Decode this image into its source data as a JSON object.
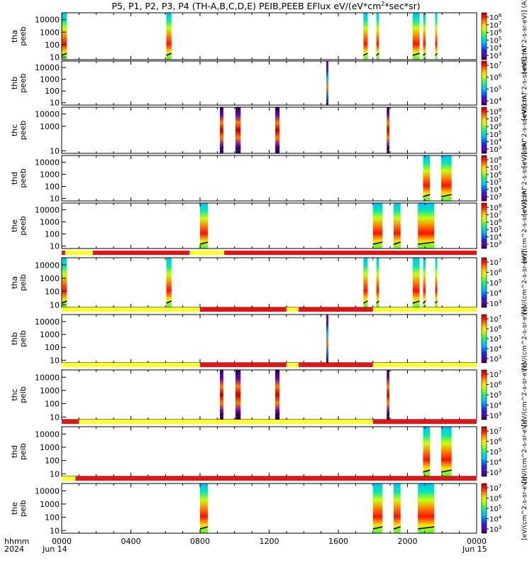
{
  "title": "P5, P1, P2, P3, P4 (TH-A,B,C,D,E) PEIB,PEEB EFlux eV/(eV*cm^2*sec*sr)",
  "title_parts": {
    "before": "P5, P1, P2, P3, P4 (TH-A,B,C,D,E) PEIB,PEEB EFlux eV/(eV*cm",
    "sup": "2",
    "after": "*sec*sr)"
  },
  "colors": {
    "spectrum": [
      "#2a0044",
      "#6a00b0",
      "#2020e0",
      "#0070ff",
      "#00c0ff",
      "#00e8b0",
      "#40ff40",
      "#c8ff00",
      "#ffe000",
      "#ff8000",
      "#ff1000",
      "#c00000"
    ],
    "bar_yellow": "#ffff22",
    "bar_red": "#ee1010",
    "line": "#000000"
  },
  "footer": {
    "hhmm_label": "hhmm",
    "year_label": "2024",
    "start_date": "Jun 14",
    "end_date": "Jun 15",
    "x_ticks": [
      "0000",
      "0400",
      "0800",
      "1200",
      "1600",
      "2000",
      "0000"
    ]
  },
  "colorbar_label_electron": "[eV/(cm^2-s-sr-eV)] (A)",
  "colorbar_label_ion": "[eV/(cm^2-s-sr-eV)]",
  "chart_data": [
    {
      "type": "heatmap",
      "probe": "tha",
      "species": "peeb",
      "ylabel": [
        "tha",
        "peeb"
      ],
      "ylog": true,
      "yticks": [
        "10",
        "100",
        "1000",
        "10000"
      ],
      "zticks": [
        "10^3",
        "10^4",
        "10^5",
        "10^6",
        "10^7",
        "10^8"
      ],
      "segments": [
        [
          0.0,
          0.3,
          "full"
        ],
        [
          6.05,
          6.35,
          "full"
        ],
        [
          17.45,
          17.7,
          "full"
        ],
        [
          18.2,
          18.35,
          "full"
        ],
        [
          20.3,
          20.7,
          "full"
        ],
        [
          20.9,
          21.05,
          "full"
        ],
        [
          21.6,
          21.7,
          "full"
        ]
      ]
    },
    {
      "type": "heatmap",
      "probe": "thb",
      "species": "peeb",
      "ylabel": [
        "thb",
        "peeb"
      ],
      "ylog": true,
      "yticks": [
        "10",
        "100",
        "1000",
        "10000"
      ],
      "zticks": [
        "10^4",
        "10^5",
        "10^6",
        "10^7"
      ],
      "segments": [
        [
          15.3,
          15.4,
          "spike"
        ]
      ]
    },
    {
      "type": "heatmap",
      "probe": "thc",
      "species": "peeb",
      "ylabel": [
        "thc",
        "peeb"
      ],
      "ylog": true,
      "yticks": [
        "10",
        "1000",
        "10000"
      ],
      "zticks": [
        "10^3",
        "10^4",
        "10^5",
        "10^6",
        "10^7",
        "10^8"
      ],
      "segments": [
        [
          9.15,
          9.35,
          "band"
        ],
        [
          10.05,
          10.35,
          "band"
        ],
        [
          12.35,
          12.6,
          "band"
        ],
        [
          18.8,
          18.95,
          "band"
        ]
      ]
    },
    {
      "type": "heatmap",
      "probe": "thd",
      "species": "peeb",
      "ylabel": [
        "thd",
        "peeb"
      ],
      "ylog": true,
      "yticks": [
        "10",
        "100",
        "1000",
        "10000"
      ],
      "zticks": [
        "10^3",
        "10^4",
        "10^5",
        "10^6",
        "10^7",
        "10^8"
      ],
      "segments": [
        [
          20.9,
          21.3,
          "full"
        ],
        [
          21.95,
          22.55,
          "full"
        ]
      ]
    },
    {
      "type": "heatmap",
      "probe": "the",
      "species": "peeb",
      "ylabel": [
        "the",
        "peeb"
      ],
      "ylog": true,
      "yticks": [
        "10",
        "100",
        "1000",
        "10000"
      ],
      "zticks": [
        "10^3",
        "10^4",
        "10^5",
        "10^6",
        "10^7",
        "10^8"
      ],
      "segments": [
        [
          8.0,
          8.45,
          "full"
        ],
        [
          18.0,
          18.55,
          "full"
        ],
        [
          19.2,
          19.6,
          "full"
        ],
        [
          20.6,
          21.55,
          "full"
        ]
      ]
    },
    {
      "type": "heatmap",
      "probe": "tha",
      "species": "peib",
      "ylabel": [
        "tha",
        "peib"
      ],
      "ylog": true,
      "yticks": [
        "10",
        "100",
        "1000",
        "10000"
      ],
      "zticks": [
        "10^3",
        "10^4",
        "10^5",
        "10^6",
        "10^7"
      ],
      "bar": [
        [
          0,
          0.2,
          "red"
        ],
        [
          0.2,
          1.8,
          "yellow"
        ],
        [
          1.8,
          7.4,
          "red"
        ],
        [
          7.4,
          9.4,
          "yellow"
        ],
        [
          9.4,
          24,
          "red"
        ]
      ],
      "segments": [
        [
          0.0,
          0.3,
          "full"
        ],
        [
          6.05,
          6.35,
          "full"
        ],
        [
          17.45,
          17.7,
          "full"
        ],
        [
          18.2,
          18.35,
          "full"
        ],
        [
          20.3,
          20.7,
          "full"
        ],
        [
          20.9,
          21.05,
          "full"
        ],
        [
          21.6,
          21.7,
          "full"
        ]
      ]
    },
    {
      "type": "heatmap",
      "probe": "thb",
      "species": "peib",
      "ylabel": [
        "thb",
        "peib"
      ],
      "ylog": true,
      "yticks": [
        "10",
        "100",
        "1000",
        "10000"
      ],
      "zticks": [
        "10^3",
        "10^4",
        "10^5",
        "10^6",
        "10^7"
      ],
      "bar": [
        [
          0,
          8.0,
          "yellow"
        ],
        [
          8.0,
          13.0,
          "red"
        ],
        [
          13.0,
          13.7,
          "yellow"
        ],
        [
          13.7,
          18.0,
          "red"
        ],
        [
          18.0,
          24,
          "yellow"
        ]
      ],
      "segments": [
        [
          15.3,
          15.4,
          "spike"
        ]
      ]
    },
    {
      "type": "heatmap",
      "probe": "thc",
      "species": "peib",
      "ylabel": [
        "thc",
        "peib"
      ],
      "ylog": true,
      "yticks": [
        "10",
        "100",
        "1000",
        "10000"
      ],
      "zticks": [
        "10^3",
        "10^4",
        "10^5",
        "10^6",
        "10^7"
      ],
      "bar": [
        [
          0,
          8.0,
          "yellow"
        ],
        [
          8.0,
          13.0,
          "red"
        ],
        [
          13.0,
          13.7,
          "yellow"
        ],
        [
          13.7,
          18.0,
          "red"
        ],
        [
          18.0,
          24,
          "yellow"
        ]
      ],
      "segments": [
        [
          9.15,
          9.35,
          "band"
        ],
        [
          10.05,
          10.35,
          "band"
        ],
        [
          12.35,
          12.6,
          "band"
        ],
        [
          18.8,
          18.95,
          "band"
        ]
      ]
    },
    {
      "type": "heatmap",
      "probe": "thd",
      "species": "peib",
      "ylabel": [
        "thd",
        "peib"
      ],
      "ylog": true,
      "yticks": [
        "10",
        "100",
        "1000",
        "10000"
      ],
      "zticks": [
        "10^3",
        "10^4",
        "10^5",
        "10^6",
        "10^7"
      ],
      "bar": [
        [
          0,
          1.0,
          "red"
        ],
        [
          1.0,
          18.0,
          "yellow"
        ],
        [
          18.0,
          24,
          "red"
        ]
      ],
      "segments": [
        [
          20.9,
          21.3,
          "full"
        ],
        [
          21.95,
          22.55,
          "full"
        ]
      ]
    },
    {
      "type": "heatmap",
      "probe": "the",
      "species": "peib",
      "ylabel": [
        "the",
        "peib"
      ],
      "ylog": true,
      "yticks": [
        "10",
        "100",
        "1000",
        "10000"
      ],
      "zticks": [
        "10^3",
        "10^4",
        "10^5",
        "10^6",
        "10^7"
      ],
      "bar": [
        [
          0,
          0.8,
          "yellow"
        ],
        [
          0.8,
          24,
          "red"
        ]
      ],
      "segments": [
        [
          8.0,
          8.45,
          "full"
        ],
        [
          18.0,
          18.55,
          "full"
        ],
        [
          19.2,
          19.6,
          "full"
        ],
        [
          20.6,
          21.55,
          "full"
        ]
      ]
    }
  ]
}
